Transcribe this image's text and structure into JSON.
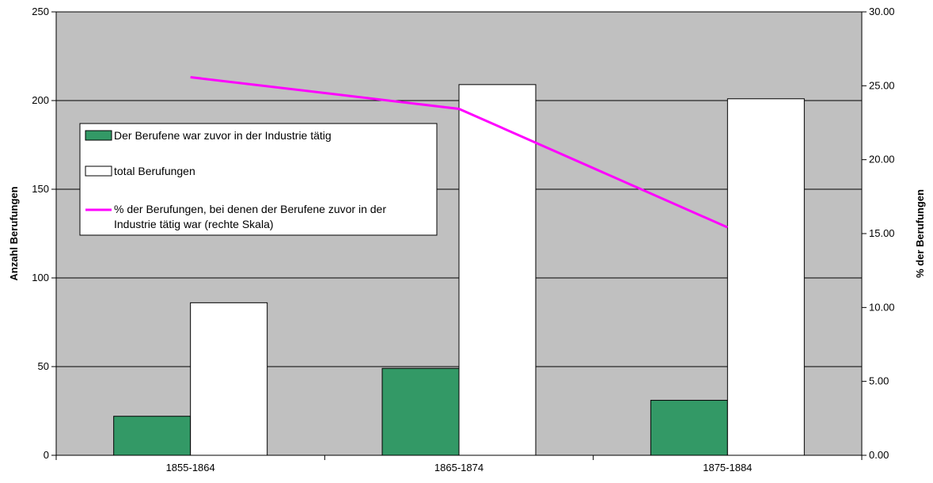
{
  "chart_data": {
    "type": "bar",
    "categories": [
      "1855-1864",
      "1865-1874",
      "1875-1884"
    ],
    "series": [
      {
        "name": "Der Berufene war zuvor in der Industrie tätig",
        "type": "bar",
        "axis": "left",
        "color": "#339966",
        "values": [
          22,
          49,
          31
        ]
      },
      {
        "name": "total Berufungen",
        "type": "bar",
        "axis": "left",
        "color": "#ffffff",
        "values": [
          86,
          209,
          201
        ]
      },
      {
        "name": "% der Berufungen, bei denen der Berufene zuvor in der Industrie tätig war (rechte Skala)",
        "type": "line",
        "axis": "right",
        "color": "#ff00ff",
        "values": [
          25.58,
          23.44,
          15.42
        ]
      }
    ],
    "y_left": {
      "label": "Anzahl Berufungen",
      "range": [
        0,
        250
      ],
      "ticks": [
        "0",
        "50",
        "100",
        "150",
        "200",
        "250"
      ]
    },
    "y_right": {
      "label": "% der Berufungen",
      "range": [
        0,
        30
      ],
      "ticks": [
        "0.00",
        "5.00",
        "10.00",
        "15.00",
        "20.00",
        "25.00",
        "30.00"
      ]
    },
    "plot_background": "#c0c0c0",
    "grid": true,
    "legend_position": "left-top, inside plot"
  }
}
